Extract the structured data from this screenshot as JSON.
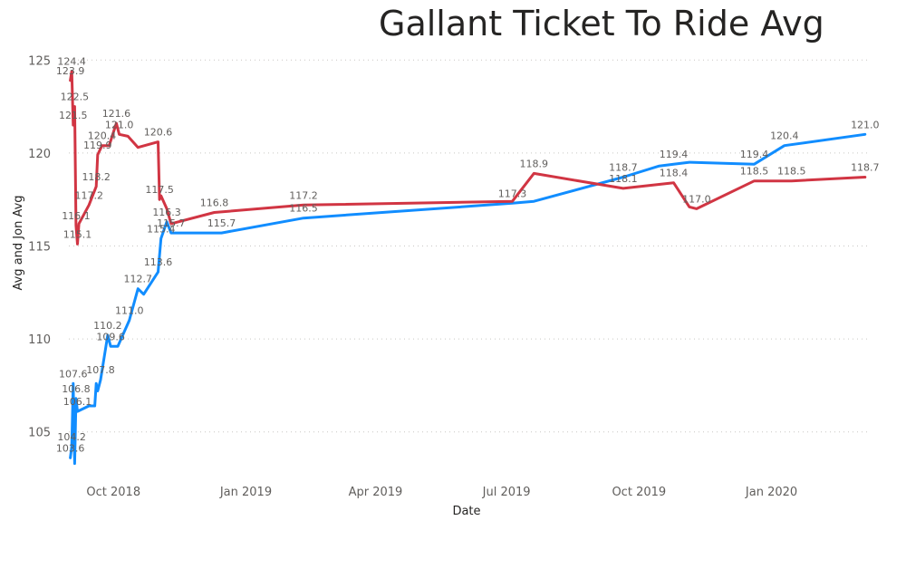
{
  "chart_data": {
    "type": "line",
    "title": "Gallant Ticket To Ride Avg",
    "xlabel": "Date",
    "ylabel": "Avg and Jon Avg",
    "ylim": [
      102.5,
      125.5
    ],
    "xlim": [
      "2018-08-31",
      "2020-03-08"
    ],
    "y_ticks": [
      105,
      110,
      115,
      120,
      125
    ],
    "x_ticks": [
      {
        "date": "2018-10-01",
        "label": "Oct 2018"
      },
      {
        "date": "2019-01-01",
        "label": "Jan 2019"
      },
      {
        "date": "2019-04-01",
        "label": "Apr 2019"
      },
      {
        "date": "2019-07-01",
        "label": "Jul 2019"
      },
      {
        "date": "2019-10-01",
        "label": "Oct 2019"
      },
      {
        "date": "2020-01-01",
        "label": "Jan 2020"
      }
    ],
    "grid": true,
    "series": [
      {
        "color": "#118DFF",
        "points": [
          {
            "x": "2018-09-01",
            "y": 103.6,
            "label": "103.6"
          },
          {
            "x": "2018-09-02",
            "y": 104.2,
            "label": "104.2"
          },
          {
            "x": "2018-09-03",
            "y": 107.6,
            "label": "107.6"
          },
          {
            "x": "2018-09-04",
            "y": 103.3
          },
          {
            "x": "2018-09-05",
            "y": 106.8,
            "label": "106.8"
          },
          {
            "x": "2018-09-06",
            "y": 106.1,
            "label": "106.1"
          },
          {
            "x": "2018-09-14",
            "y": 106.4
          },
          {
            "x": "2018-09-18",
            "y": 106.4
          },
          {
            "x": "2018-09-19",
            "y": 107.6
          },
          {
            "x": "2018-09-20",
            "y": 107.2
          },
          {
            "x": "2018-09-22",
            "y": 107.8,
            "label": "107.8"
          },
          {
            "x": "2018-09-27",
            "y": 110.2,
            "label": "110.2"
          },
          {
            "x": "2018-09-29",
            "y": 109.6,
            "label": "109.6"
          },
          {
            "x": "2018-10-04",
            "y": 109.6
          },
          {
            "x": "2018-10-12",
            "y": 111.0,
            "label": "111.0"
          },
          {
            "x": "2018-10-18",
            "y": 112.7,
            "label": "112.7"
          },
          {
            "x": "2018-10-22",
            "y": 112.4
          },
          {
            "x": "2018-11-01",
            "y": 113.6,
            "label": "113.6"
          },
          {
            "x": "2018-11-03",
            "y": 115.4,
            "label": "115.4"
          },
          {
            "x": "2018-11-07",
            "y": 116.3,
            "label": "116.3"
          },
          {
            "x": "2018-11-10",
            "y": 115.7,
            "label": "115.7"
          },
          {
            "x": "2018-12-15",
            "y": 115.7,
            "label": "115.7"
          },
          {
            "x": "2019-02-10",
            "y": 116.5,
            "label": "116.5"
          },
          {
            "x": "2019-07-05",
            "y": 117.3,
            "label": "117.3"
          },
          {
            "x": "2019-07-20",
            "y": 117.4
          },
          {
            "x": "2019-09-20",
            "y": 118.7,
            "label": "118.7"
          },
          {
            "x": "2019-10-15",
            "y": 119.3
          },
          {
            "x": "2019-10-25",
            "y": 119.4,
            "label": "119.4"
          },
          {
            "x": "2019-11-05",
            "y": 119.5
          },
          {
            "x": "2019-12-20",
            "y": 119.4,
            "label": "119.4"
          },
          {
            "x": "2020-01-10",
            "y": 120.4,
            "label": "120.4"
          },
          {
            "x": "2020-03-06",
            "y": 121.0,
            "label": "121.0"
          }
        ]
      },
      {
        "color": "#D13543",
        "points": [
          {
            "x": "2018-09-01",
            "y": 123.9,
            "label": "123.9"
          },
          {
            "x": "2018-09-02",
            "y": 124.4,
            "label": "124.4"
          },
          {
            "x": "2018-09-03",
            "y": 121.5,
            "label": "121.5"
          },
          {
            "x": "2018-09-04",
            "y": 122.5,
            "label": "122.5"
          },
          {
            "x": "2018-09-05",
            "y": 116.1,
            "label": "116.1"
          },
          {
            "x": "2018-09-06",
            "y": 115.1,
            "label": "115.1"
          },
          {
            "x": "2018-09-07",
            "y": 116.2
          },
          {
            "x": "2018-09-14",
            "y": 117.2,
            "label": "117.2"
          },
          {
            "x": "2018-09-19",
            "y": 118.2,
            "label": "118.2"
          },
          {
            "x": "2018-09-20",
            "y": 119.9,
            "label": "119.9"
          },
          {
            "x": "2018-09-23",
            "y": 120.4,
            "label": "120.4"
          },
          {
            "x": "2018-09-28",
            "y": 120.4
          },
          {
            "x": "2018-10-03",
            "y": 121.6,
            "label": "121.6"
          },
          {
            "x": "2018-10-05",
            "y": 121.0,
            "label": "121.0"
          },
          {
            "x": "2018-10-11",
            "y": 120.9
          },
          {
            "x": "2018-10-18",
            "y": 120.3
          },
          {
            "x": "2018-11-01",
            "y": 120.6,
            "label": "120.6"
          },
          {
            "x": "2018-11-02",
            "y": 117.5,
            "label": "117.5"
          },
          {
            "x": "2018-11-03",
            "y": 117.7
          },
          {
            "x": "2018-11-07",
            "y": 117.0
          },
          {
            "x": "2018-11-10",
            "y": 116.2
          },
          {
            "x": "2018-12-10",
            "y": 116.8,
            "label": "116.8"
          },
          {
            "x": "2019-02-10",
            "y": 117.2,
            "label": "117.2"
          },
          {
            "x": "2019-07-05",
            "y": 117.4
          },
          {
            "x": "2019-07-20",
            "y": 118.9,
            "label": "118.9"
          },
          {
            "x": "2019-09-20",
            "y": 118.1,
            "label": "118.1"
          },
          {
            "x": "2019-10-25",
            "y": 118.4,
            "label": "118.4"
          },
          {
            "x": "2019-11-05",
            "y": 117.1
          },
          {
            "x": "2019-11-10",
            "y": 117.0,
            "label": "117.0"
          },
          {
            "x": "2019-12-20",
            "y": 118.5,
            "label": "118.5"
          },
          {
            "x": "2020-01-15",
            "y": 118.5,
            "label": "118.5"
          },
          {
            "x": "2020-03-06",
            "y": 118.7,
            "label": "118.7"
          }
        ]
      }
    ]
  }
}
